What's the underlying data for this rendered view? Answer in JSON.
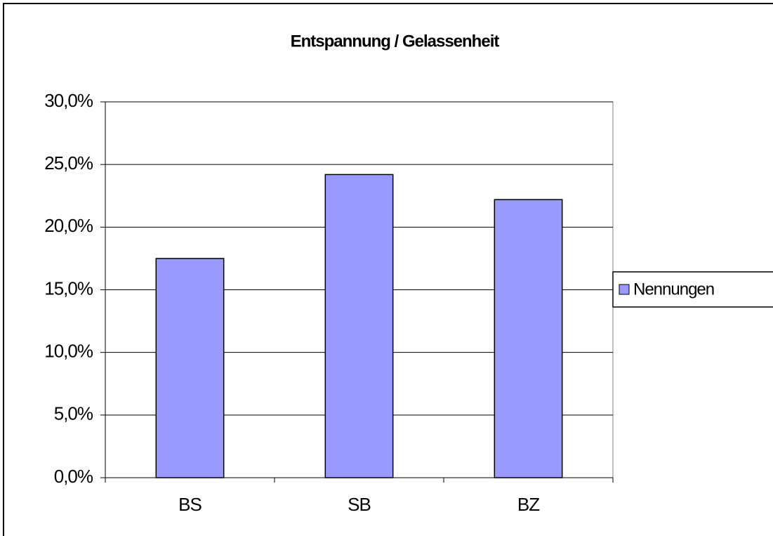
{
  "chart_data": {
    "type": "bar",
    "title": "Entspannung / Gelassenheit",
    "categories": [
      "BS",
      "SB",
      "BZ"
    ],
    "series": [
      {
        "name": "Nennungen",
        "color": "#9999ff",
        "values": [
          17.5,
          24.2,
          22.2
        ]
      }
    ],
    "ylim": [
      0,
      30
    ],
    "yticks": [
      {
        "value": 0,
        "label": "0,0%"
      },
      {
        "value": 5,
        "label": "5,0%"
      },
      {
        "value": 10,
        "label": "10,0%"
      },
      {
        "value": 15,
        "label": "15,0%"
      },
      {
        "value": 20,
        "label": "20,0%"
      },
      {
        "value": 25,
        "label": "25,0%"
      },
      {
        "value": 30,
        "label": "30,0%"
      }
    ],
    "grid": true,
    "legend": "right"
  }
}
